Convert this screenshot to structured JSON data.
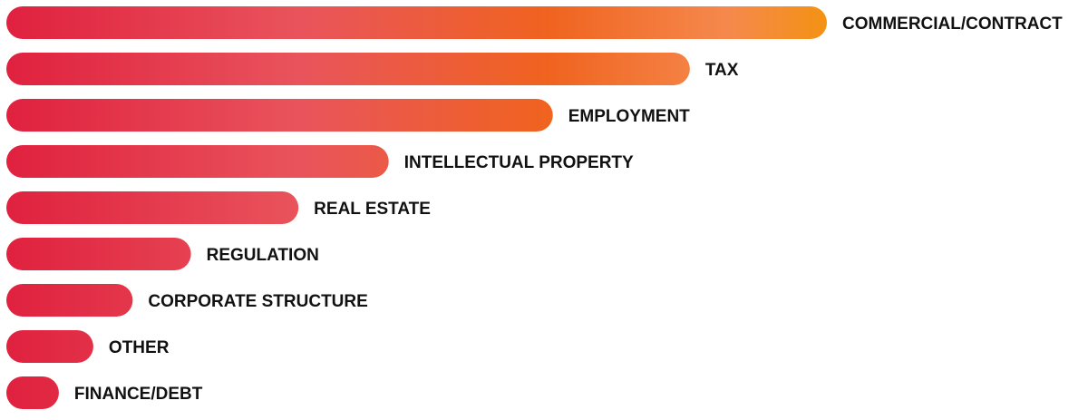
{
  "chart_data": {
    "type": "bar",
    "orientation": "horizontal",
    "title": "",
    "xlabel": "",
    "ylabel": "",
    "grid": false,
    "legend": "none",
    "xlim": [
      0,
      100
    ],
    "categories": [
      "COMMERCIAL/CONTRACT",
      "TAX",
      "EMPLOYMENT",
      "INTELLECTUAL PROPERTY",
      "REAL ESTATE",
      "REGULATION",
      "CORPORATE STRUCTURE",
      "OTHER",
      "FINANCE/DEBT"
    ],
    "values": [
      100,
      83.3,
      66.6,
      46.6,
      35.6,
      22.5,
      15.4,
      10.6,
      6.4
    ],
    "colors": {
      "gradient_start": "#E0213F",
      "gradient_mid": "#F0631F",
      "gradient_light": "#F5894D",
      "gradient_end": "#F39213",
      "label_text": "#111111"
    }
  }
}
